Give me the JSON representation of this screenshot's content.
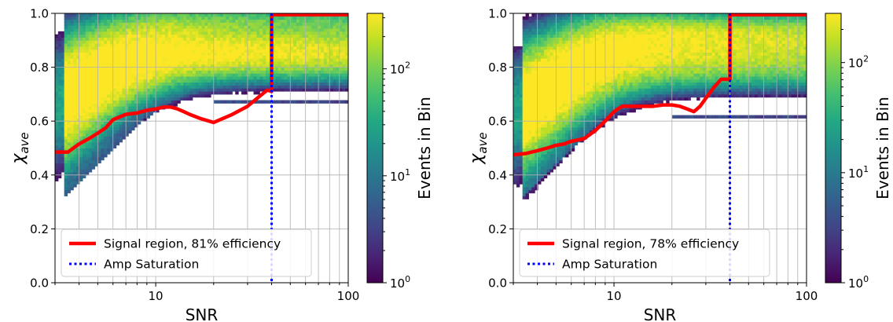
{
  "chart_data": [
    {
      "type": "heatmap",
      "xlabel": "SNR",
      "ylabel": "χ_ave",
      "xscale": "log",
      "xlim": [
        3,
        100
      ],
      "ylim": [
        0.0,
        1.0
      ],
      "xticks": [
        {
          "v": 10,
          "label": "10"
        },
        {
          "v": 100,
          "label": "100"
        }
      ],
      "yticks": [
        0.0,
        0.2,
        0.4,
        0.6,
        0.8,
        1.0
      ],
      "ytick_labels": [
        "0.0",
        "0.2",
        "0.4",
        "0.6",
        "0.8",
        "1.0"
      ],
      "grid": true,
      "colormap": "viridis",
      "colorbar": {
        "label": "Events in Bin",
        "scale": "log",
        "range": [
          1,
          330
        ],
        "ticks": [
          {
            "v": 1,
            "label": "10^0"
          },
          {
            "v": 10,
            "label": "10^1"
          },
          {
            "v": 100,
            "label": "10^2"
          }
        ]
      },
      "series": [
        {
          "name": "Signal region, 81% efficiency",
          "type": "line",
          "color": "#ff0000",
          "style": "solid",
          "x": [
            3,
            3.5,
            4,
            4.5,
            5,
            5.5,
            6,
            7,
            8,
            9,
            10,
            11,
            12,
            13,
            14,
            15,
            17,
            20,
            25,
            30,
            35,
            38,
            40,
            40,
            50,
            60,
            80,
            100
          ],
          "y": [
            0.485,
            0.485,
            0.515,
            0.535,
            0.555,
            0.575,
            0.605,
            0.625,
            0.63,
            0.64,
            0.645,
            0.652,
            0.652,
            0.645,
            0.635,
            0.625,
            0.61,
            0.595,
            0.625,
            0.655,
            0.695,
            0.715,
            0.71,
            0.995,
            0.995,
            0.995,
            0.995,
            0.995
          ]
        },
        {
          "name": "Amp Saturation",
          "type": "vline",
          "color": "#0000ff",
          "style": "dotted",
          "x": 40
        }
      ],
      "legend_position": "lower-left",
      "bands": [
        {
          "peak": 0.875,
          "start": 0.7,
          "spread": 3.0,
          "width": 0.045,
          "amp": 330
        },
        {
          "peak": 0.835,
          "start": 0.62,
          "spread": 2.8,
          "width": 0.04,
          "amp": 240
        },
        {
          "peak": 0.965,
          "start": 0.74,
          "spread": 3.2,
          "width": 0.03,
          "amp": 120
        }
      ],
      "lower_band": {
        "y": 0.675,
        "from": 20,
        "to": 100,
        "amp": 2
      }
    },
    {
      "type": "heatmap",
      "xlabel": "SNR",
      "ylabel": "χ_ave",
      "xscale": "log",
      "xlim": [
        3,
        100
      ],
      "ylim": [
        0.0,
        1.0
      ],
      "xticks": [
        {
          "v": 10,
          "label": "10"
        },
        {
          "v": 100,
          "label": "100"
        }
      ],
      "yticks": [
        0.0,
        0.2,
        0.4,
        0.6,
        0.8,
        1.0
      ],
      "ytick_labels": [
        "0.0",
        "0.2",
        "0.4",
        "0.6",
        "0.8",
        "1.0"
      ],
      "grid": true,
      "colormap": "viridis",
      "colorbar": {
        "label": "Events in Bin",
        "scale": "log",
        "range": [
          1,
          280
        ],
        "ticks": [
          {
            "v": 1,
            "label": "10^0"
          },
          {
            "v": 10,
            "label": "10^1"
          },
          {
            "v": 100,
            "label": "10^2"
          }
        ]
      },
      "series": [
        {
          "name": "Signal region, 78% efficiency",
          "type": "line",
          "color": "#ff0000",
          "style": "solid",
          "x": [
            3,
            3.5,
            4,
            4.5,
            5,
            5.5,
            6,
            7,
            8,
            9,
            10,
            11,
            12,
            14,
            16,
            18,
            20,
            22,
            24,
            26,
            28,
            30,
            33,
            36,
            40,
            40,
            50,
            60,
            80,
            100
          ],
          "y": [
            0.475,
            0.48,
            0.49,
            0.5,
            0.51,
            0.515,
            0.525,
            0.535,
            0.565,
            0.6,
            0.635,
            0.655,
            0.655,
            0.655,
            0.655,
            0.66,
            0.66,
            0.655,
            0.645,
            0.635,
            0.655,
            0.685,
            0.725,
            0.755,
            0.755,
            0.995,
            0.995,
            0.995,
            0.995,
            0.995
          ]
        },
        {
          "name": "Amp Saturation",
          "type": "vline",
          "color": "#0000ff",
          "style": "dotted",
          "x": 40
        }
      ],
      "legend_position": "lower-left",
      "bands": [
        {
          "peak": 0.875,
          "start": 0.64,
          "spread": 3.2,
          "width": 0.045,
          "amp": 280
        },
        {
          "peak": 0.93,
          "start": 0.7,
          "spread": 3.4,
          "width": 0.035,
          "amp": 200
        },
        {
          "peak": 0.805,
          "start": 0.58,
          "spread": 3.0,
          "width": 0.04,
          "amp": 150
        }
      ],
      "lower_band": {
        "y": 0.615,
        "from": 20,
        "to": 100,
        "amp": 2
      }
    }
  ]
}
